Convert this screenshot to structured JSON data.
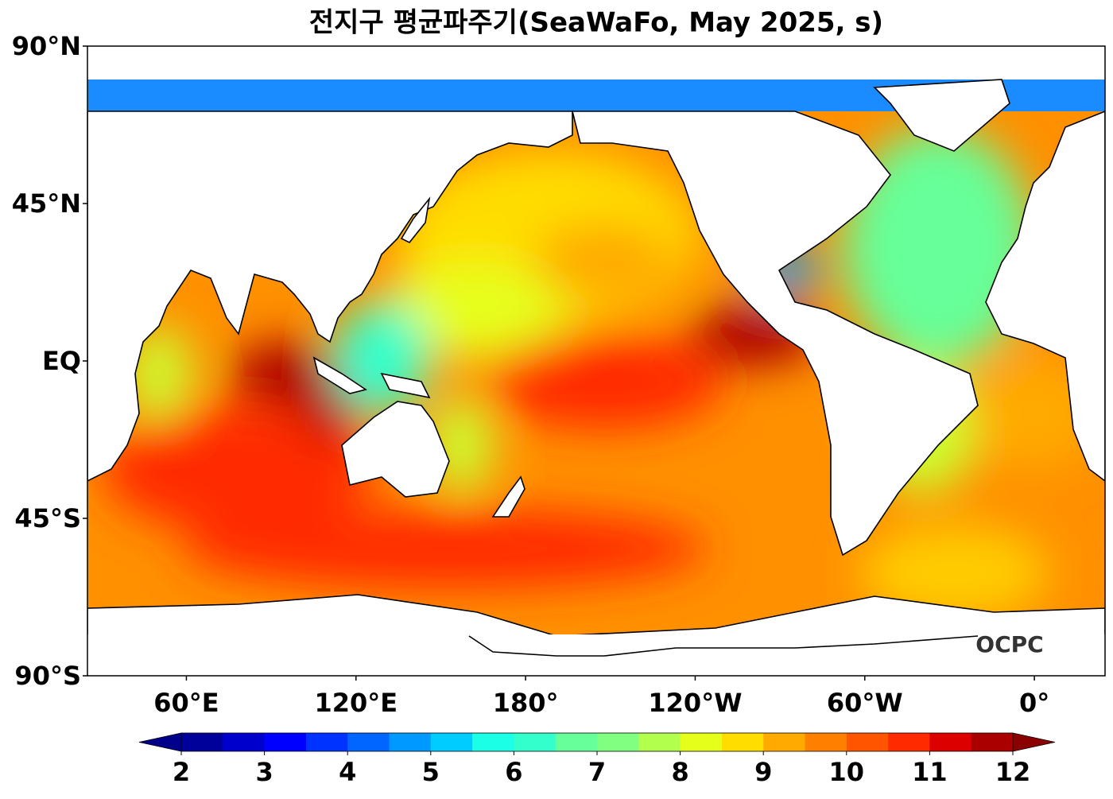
{
  "map": {
    "title": "전지구 평균파주기(SeaWaFo, May 2025, s)",
    "lat_ticks": [
      {
        "value": 90,
        "label": "90°N"
      },
      {
        "value": 45,
        "label": "45°N"
      },
      {
        "value": 0,
        "label": "EQ"
      },
      {
        "value": -45,
        "label": "45°S"
      },
      {
        "value": -90,
        "label": "90°S"
      }
    ],
    "lon_ticks": [
      {
        "value": 60,
        "label": "60°E"
      },
      {
        "value": 120,
        "label": "120°E"
      },
      {
        "value": 180,
        "label": "180°"
      },
      {
        "value": 240,
        "label": "120°W"
      },
      {
        "value": 300,
        "label": "60°W"
      },
      {
        "value": 360,
        "label": "0°"
      }
    ],
    "lonlim": [
      25,
      385
    ],
    "latlim": [
      -90,
      90
    ],
    "colorbar": {
      "lim": [
        2,
        12
      ],
      "ticks": [
        2,
        3,
        4,
        5,
        6,
        7,
        8,
        9,
        10,
        11,
        12
      ],
      "colors": [
        "#00009a",
        "#0000cc",
        "#0000ff",
        "#0033ff",
        "#0066ff",
        "#0099ff",
        "#00ccff",
        "#1affe6",
        "#33ffcc",
        "#66ff99",
        "#80ff80",
        "#b3ff4d",
        "#e6ff1a",
        "#ffdd00",
        "#ffaa00",
        "#ff8000",
        "#ff5500",
        "#ff2a00",
        "#dd0000",
        "#aa0000"
      ],
      "under_color": "#00008b",
      "over_color": "#8b0000"
    },
    "logo": "OCPC"
  }
}
